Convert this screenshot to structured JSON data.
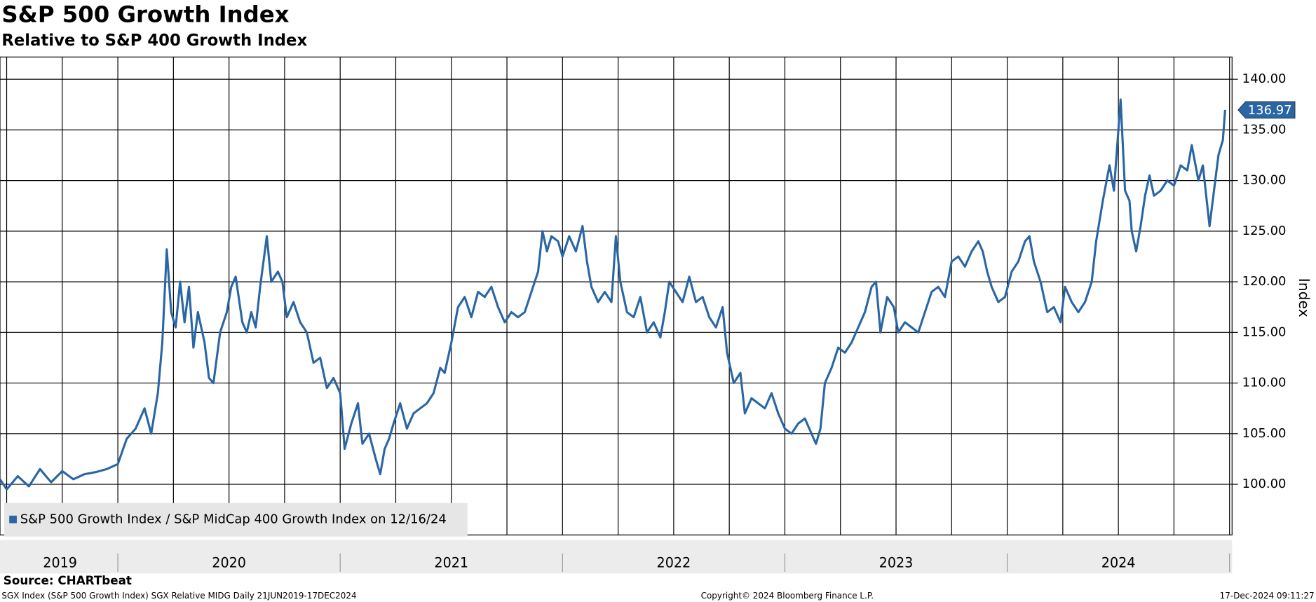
{
  "chart_data": {
    "type": "line",
    "title": "S&P 500 Growth Index",
    "subtitle": "Relative to S&P 400 Growth Index",
    "y_label": "Index",
    "source": "Source: CHARTbeat",
    "footer_left": "SGX Index (S&P 500 Growth Index) SGX Relative MIDG  Daily 21JUN2019-17DEC2024",
    "footer_center": "Copyright© 2024 Bloomberg Finance L.P.",
    "footer_right": "17-Dec-2024 09:11:27",
    "xlim": [
      2019.47,
      2025.0
    ],
    "xticks": [
      {
        "value": 2019.74,
        "label": "2019"
      },
      {
        "value": 2020.5,
        "label": "2020"
      },
      {
        "value": 2021.5,
        "label": "2021"
      },
      {
        "value": 2022.5,
        "label": "2022"
      },
      {
        "value": 2023.5,
        "label": "2023"
      },
      {
        "value": 2024.5,
        "label": "2024"
      }
    ],
    "ylim": [
      95.0,
      142.2
    ],
    "yticks": [
      {
        "value": 100,
        "label": "100.00"
      },
      {
        "value": 105,
        "label": "105.00"
      },
      {
        "value": 110,
        "label": "110.00"
      },
      {
        "value": 115,
        "label": "115.00"
      },
      {
        "value": 120,
        "label": "120.00"
      },
      {
        "value": 125,
        "label": "125.00"
      },
      {
        "value": 130,
        "label": "130.00"
      },
      {
        "value": 135,
        "label": "135.00"
      },
      {
        "value": 140,
        "label": "140.00"
      }
    ],
    "grid": true,
    "legend": "bottom-left",
    "x": [
      2019.47,
      2019.5,
      2019.55,
      2019.6,
      2019.65,
      2019.7,
      2019.75,
      2019.8,
      2019.85,
      2019.9,
      2019.95,
      2020.0,
      2020.04,
      2020.08,
      2020.12,
      2020.15,
      2020.18,
      2020.2,
      2020.22,
      2020.24,
      2020.26,
      2020.28,
      2020.3,
      2020.32,
      2020.34,
      2020.36,
      2020.39,
      2020.41,
      2020.43,
      2020.46,
      2020.49,
      2020.51,
      2020.53,
      2020.56,
      2020.58,
      2020.6,
      2020.62,
      2020.64,
      2020.67,
      2020.69,
      2020.72,
      2020.74,
      2020.76,
      2020.79,
      2020.82,
      2020.85,
      2020.88,
      2020.91,
      2020.94,
      2020.97,
      2021.0,
      2021.02,
      2021.05,
      2021.08,
      2021.1,
      2021.13,
      2021.16,
      2021.18,
      2021.2,
      2021.22,
      2021.24,
      2021.27,
      2021.3,
      2021.33,
      2021.36,
      2021.39,
      2021.42,
      2021.45,
      2021.47,
      2021.5,
      2021.53,
      2021.56,
      2021.59,
      2021.62,
      2021.65,
      2021.68,
      2021.71,
      2021.74,
      2021.77,
      2021.8,
      2021.83,
      2021.86,
      2021.89,
      2021.91,
      2021.93,
      2021.95,
      2021.98,
      2022.0,
      2022.03,
      2022.06,
      2022.09,
      2022.11,
      2022.13,
      2022.16,
      2022.19,
      2022.22,
      2022.24,
      2022.26,
      2022.29,
      2022.32,
      2022.35,
      2022.38,
      2022.41,
      2022.44,
      2022.46,
      2022.48,
      2022.51,
      2022.54,
      2022.57,
      2022.6,
      2022.63,
      2022.66,
      2022.69,
      2022.72,
      2022.74,
      2022.77,
      2022.8,
      2022.82,
      2022.85,
      2022.88,
      2022.91,
      2022.94,
      2022.97,
      2023.0,
      2023.03,
      2023.06,
      2023.09,
      2023.12,
      2023.14,
      2023.16,
      2023.18,
      2023.21,
      2023.24,
      2023.27,
      2023.3,
      2023.33,
      2023.36,
      2023.39,
      2023.41,
      2023.43,
      2023.46,
      2023.49,
      2023.51,
      2023.54,
      2023.57,
      2023.6,
      2023.63,
      2023.66,
      2023.69,
      2023.72,
      2023.75,
      2023.78,
      2023.81,
      2023.84,
      2023.87,
      2023.89,
      2023.91,
      2023.93,
      2023.96,
      2023.99,
      2024.02,
      2024.05,
      2024.08,
      2024.1,
      2024.12,
      2024.15,
      2024.18,
      2024.21,
      2024.24,
      2024.26,
      2024.29,
      2024.32,
      2024.35,
      2024.38,
      2024.4,
      2024.43,
      2024.46,
      2024.48,
      2024.51,
      2024.53,
      2024.55,
      2024.56,
      2024.58,
      2024.6,
      2024.62,
      2024.64,
      2024.66,
      2024.69,
      2024.72,
      2024.75,
      2024.78,
      2024.81,
      2024.83,
      2024.86,
      2024.88,
      2024.9,
      2024.91,
      2024.93,
      2024.95,
      2024.97,
      2024.98
    ],
    "series": [
      {
        "name": "S&P 500 Growth Index / S&P MidCap 400 Growth Index on 12/16/24",
        "color": "#2a66a4",
        "values": [
          100.5,
          99.5,
          100.8,
          99.8,
          101.5,
          100.2,
          101.3,
          100.5,
          101.0,
          101.2,
          101.5,
          102.0,
          104.5,
          105.5,
          107.5,
          105.0,
          109,
          114,
          123.2,
          117,
          115.5,
          120,
          116,
          119.5,
          113.5,
          117,
          114,
          110.5,
          110,
          115,
          117,
          119.5,
          120.5,
          116,
          115,
          117,
          115.5,
          119.5,
          124.5,
          120,
          121,
          120,
          116.5,
          118,
          116,
          115,
          112,
          112.5,
          109.5,
          110.5,
          109,
          103.5,
          106,
          108,
          104,
          105,
          102.5,
          101,
          103.5,
          104.5,
          106,
          108,
          105.5,
          107,
          107.5,
          108,
          109,
          111.5,
          111,
          114,
          117.5,
          118.5,
          116.5,
          119,
          118.5,
          119.5,
          117.5,
          116,
          117,
          116.5,
          117,
          119,
          121,
          125,
          123,
          124.5,
          124,
          122.5,
          124.5,
          123,
          125.5,
          122,
          119.5,
          118,
          119,
          118,
          124.5,
          120,
          117,
          116.5,
          118.5,
          115,
          116,
          114.5,
          117,
          120,
          119,
          118,
          120.5,
          118,
          118.5,
          116.5,
          115.5,
          117.5,
          113,
          110,
          111,
          107,
          108.5,
          108,
          107.5,
          109,
          107,
          105.5,
          105,
          106,
          106.5,
          105,
          104,
          105.5,
          110,
          111.5,
          113.5,
          113,
          114,
          115.5,
          117,
          119.5,
          120,
          115,
          118.5,
          117.5,
          115,
          116,
          115.5,
          115,
          117,
          119,
          119.5,
          118.5,
          122,
          122.5,
          121.5,
          123,
          124,
          123,
          121,
          119.5,
          118,
          118.5,
          121,
          122,
          124,
          124.5,
          122,
          120,
          117,
          117.5,
          116,
          119.5,
          118,
          117,
          118,
          120,
          124,
          128,
          131.5,
          129,
          138,
          129,
          128,
          125,
          123,
          125.5,
          128.5,
          130.5,
          128.5,
          129,
          130,
          129.5,
          131.5,
          131,
          133.5,
          130,
          131.5,
          127.5,
          125.5,
          129,
          132.5,
          134,
          136.97
        ]
      }
    ]
  }
}
